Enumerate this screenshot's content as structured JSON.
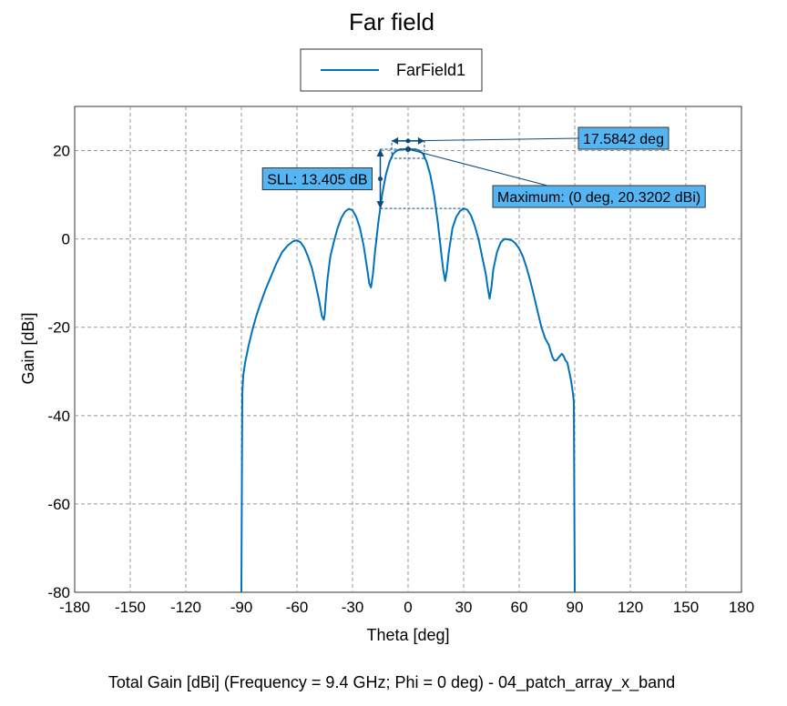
{
  "chart_data": {
    "type": "line",
    "title": "Far field",
    "xlabel": "Theta [deg]",
    "ylabel": "Gain [dBi]",
    "caption": "Total Gain [dBi] (Frequency = 9.4 GHz; Phi = 0 deg) - 04_patch_array_x_band",
    "xlim": [
      -180,
      180
    ],
    "ylim": [
      -80,
      30
    ],
    "xticks": [
      "-180",
      "-150",
      "-120",
      "-90",
      "-60",
      "-30",
      "0",
      "30",
      "60",
      "90",
      "120",
      "150",
      "180"
    ],
    "yticks": [
      "20",
      "0",
      "-20",
      "-40",
      "-60",
      "-80"
    ],
    "grid": true,
    "legend_position": "top-center",
    "series": [
      {
        "name": "FarField1",
        "color": "#0072bd",
        "x": [
          -90,
          -89.5,
          -89,
          -88,
          -86,
          -84,
          -82,
          -80,
          -77,
          -74,
          -71,
          -68,
          -65,
          -62,
          -60,
          -58,
          -56,
          -54,
          -52,
          -50,
          -48,
          -46.5,
          -45.5,
          -45,
          -44.5,
          -43.5,
          -42,
          -40,
          -38,
          -36,
          -34,
          -32,
          -30,
          -28,
          -26,
          -24,
          -22,
          -21,
          -20,
          -19,
          -18,
          -16,
          -14,
          -12,
          -10,
          -8,
          -6,
          -4,
          -2,
          0,
          2,
          4,
          6,
          8,
          10,
          12,
          14,
          16,
          18,
          19,
          20,
          21,
          22,
          24,
          26,
          28,
          30,
          32,
          34,
          36,
          38,
          40,
          42,
          43,
          44,
          45,
          46,
          48,
          50,
          52,
          54,
          56,
          58,
          60,
          62,
          64,
          66,
          68,
          70,
          72,
          74,
          76,
          77,
          78,
          79,
          80,
          81,
          82,
          83,
          84,
          85,
          86,
          87,
          88,
          89,
          89.5,
          90
        ],
        "y": [
          -80,
          -35,
          -31,
          -28,
          -24,
          -20.5,
          -17.5,
          -15,
          -11.5,
          -8.5,
          -5.5,
          -3,
          -1.5,
          -0.5,
          -0.3,
          -0.8,
          -2,
          -4,
          -6.5,
          -10,
          -14,
          -17.5,
          -18.3,
          -17,
          -14,
          -9,
          -4,
          -0.5,
          2.5,
          4.8,
          6.2,
          6.8,
          6.5,
          5,
          2.5,
          -1.5,
          -7,
          -10,
          -11,
          -8,
          -3.5,
          4,
          10,
          14.5,
          17.5,
          19.3,
          20,
          20.3,
          20.3,
          20.32,
          20.3,
          20.3,
          20,
          19.3,
          17.5,
          14.5,
          10,
          4,
          -3.5,
          -7,
          -9.5,
          -7,
          -3,
          2.5,
          5,
          6.3,
          6.9,
          6.6,
          5.3,
          3,
          0,
          -4,
          -8,
          -11,
          -13.5,
          -11,
          -7,
          -3,
          -0.8,
          0,
          -0.1,
          -0.3,
          -1,
          -2.2,
          -4,
          -6.5,
          -9.5,
          -13,
          -16.5,
          -20,
          -22.5,
          -24,
          -25.5,
          -26.8,
          -27.5,
          -27.5,
          -27,
          -26.5,
          -26,
          -26.5,
          -27.5,
          -28,
          -30,
          -32,
          -35,
          -37,
          -80
        ]
      }
    ],
    "annotations": [
      {
        "label": "17.5842 deg",
        "x_from": -8.8,
        "x_to": 8.8,
        "y": 22.2
      },
      {
        "label": "SLL: 13.405 dB",
        "x": -15,
        "y_from": 20.32,
        "y_to": 6.9
      },
      {
        "label": "Maximum: (0 deg, 20.3202 dBi)",
        "x": 0,
        "y": 20.32
      }
    ]
  }
}
